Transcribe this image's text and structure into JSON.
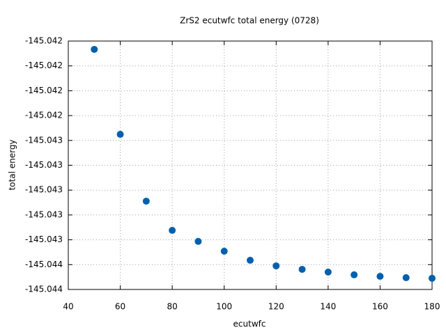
{
  "chart_data": {
    "type": "scatter",
    "title": "ZrS2 ecutwfc total energy (0728)",
    "x_label": "ecutwfc",
    "y_label": "total energy",
    "x": [
      50,
      60,
      70,
      80,
      90,
      100,
      110,
      120,
      130,
      140,
      150,
      160,
      170,
      180
    ],
    "values": [
      -145.041867,
      -145.042551,
      -145.043089,
      -145.043324,
      -145.043413,
      -145.043492,
      -145.043565,
      -145.04361,
      -145.043638,
      -145.04366,
      -145.043682,
      -145.043694,
      -145.043705,
      -145.04371
    ],
    "color": "#0060ad",
    "xlim": [
      40,
      180
    ],
    "xticks": [
      40,
      60,
      80,
      100,
      120,
      140,
      160,
      180
    ],
    "ylim": [
      -145.0438,
      -145.0418
    ],
    "yticks": [
      {
        "value": -145.0438,
        "label": "-145.044"
      },
      {
        "value": -145.0436,
        "label": "-145.044"
      },
      {
        "value": -145.0434,
        "label": "-145.043"
      },
      {
        "value": -145.0432,
        "label": "-145.043"
      },
      {
        "value": -145.043,
        "label": "-145.043"
      },
      {
        "value": -145.0428,
        "label": "-145.043"
      },
      {
        "value": -145.0426,
        "label": "-145.043"
      },
      {
        "value": -145.0424,
        "label": "-145.042"
      },
      {
        "value": -145.0422,
        "label": "-145.042"
      },
      {
        "value": -145.042,
        "label": "-145.042"
      },
      {
        "value": -145.0418,
        "label": "-145.042"
      }
    ],
    "grid": true
  }
}
